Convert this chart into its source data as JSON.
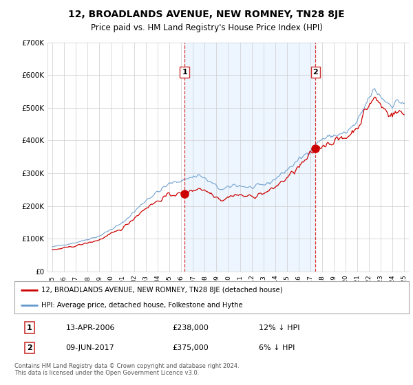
{
  "title": "12, BROADLANDS AVENUE, NEW ROMNEY, TN28 8JE",
  "subtitle": "Price paid vs. HM Land Registry's House Price Index (HPI)",
  "legend_line1": "12, BROADLANDS AVENUE, NEW ROMNEY, TN28 8JE (detached house)",
  "legend_line2": "HPI: Average price, detached house, Folkestone and Hythe",
  "annotation1_date": "13-APR-2006",
  "annotation1_price": "£238,000",
  "annotation1_hpi": "12% ↓ HPI",
  "annotation2_date": "09-JUN-2017",
  "annotation2_price": "£375,000",
  "annotation2_hpi": "6% ↓ HPI",
  "footer": "Contains HM Land Registry data © Crown copyright and database right 2024.\nThis data is licensed under the Open Government Licence v3.0.",
  "red_color": "#cc0000",
  "blue_color": "#6699cc",
  "blue_fill": "#ddeeff",
  "marker1_year": 2006.28,
  "marker2_year": 2017.44,
  "marker1_price": 238000,
  "marker2_price": 375000,
  "ylim_min": 0,
  "ylim_max": 700000,
  "background_color": "#ffffff",
  "grid_color": "#cccccc"
}
